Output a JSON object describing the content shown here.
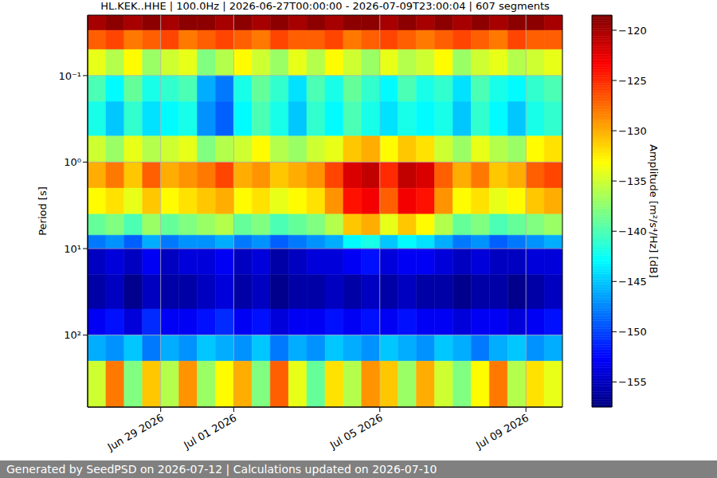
{
  "chart_data": {
    "type": "heatmap",
    "title": "HL.KEK..HHE | 100.0Hz | 2026-06-27T00:00:00 - 2026-07-09T23:00:04 | 607 segments",
    "y_label": "Period [s]",
    "log": "y",
    "grid": true,
    "xlim": [
      "2026-06-27T00:00:00Z",
      "2026-07-10T00:00:00Z"
    ],
    "xticks": [
      {
        "value": "2026-06-29T00:00:00Z",
        "label": "Jun 29 2026"
      },
      {
        "value": "2026-07-01T00:00:00Z",
        "label": "Jul 01 2026"
      },
      {
        "value": "2026-07-05T00:00:00Z",
        "label": "Jul 05 2026"
      },
      {
        "value": "2026-07-09T00:00:00Z",
        "label": "Jul 09 2026"
      }
    ],
    "ylim": [
      0.02,
      680
    ],
    "yticks": [
      {
        "value": 0.1,
        "label": "10⁻¹"
      },
      {
        "value": 1,
        "label": "10⁰"
      },
      {
        "value": 10,
        "label": "10¹"
      },
      {
        "value": 100,
        "label": "10²"
      }
    ],
    "x_edges": [
      "2026-06-27T00:00:00Z",
      "2026-06-27T12:00:00Z",
      "2026-06-28T00:00:00Z",
      "2026-06-28T12:00:00Z",
      "2026-06-29T00:00:00Z",
      "2026-06-29T12:00:00Z",
      "2026-06-30T00:00:00Z",
      "2026-06-30T12:00:00Z",
      "2026-07-01T00:00:00Z",
      "2026-07-01T12:00:00Z",
      "2026-07-02T00:00:00Z",
      "2026-07-02T12:00:00Z",
      "2026-07-03T00:00:00Z",
      "2026-07-03T12:00:00Z",
      "2026-07-04T00:00:00Z",
      "2026-07-04T12:00:00Z",
      "2026-07-05T00:00:00Z",
      "2026-07-05T12:00:00Z",
      "2026-07-06T00:00:00Z",
      "2026-07-06T12:00:00Z",
      "2026-07-07T00:00:00Z",
      "2026-07-07T12:00:00Z",
      "2026-07-08T00:00:00Z",
      "2026-07-08T12:00:00Z",
      "2026-07-09T00:00:00Z",
      "2026-07-09T12:00:00Z",
      "2026-07-10T00:00:00Z"
    ],
    "y_edges": [
      0.02,
      0.03,
      0.05,
      0.1,
      0.2,
      0.5,
      1,
      2,
      4,
      7,
      10,
      20,
      50,
      100,
      200,
      680
    ],
    "cells": [
      [
        -120,
        -119,
        -120,
        -119,
        -120,
        -119,
        -119,
        -120,
        -119,
        -120,
        -119,
        -120,
        -119,
        -120,
        -119,
        -119,
        -120,
        -119,
        -120,
        -119,
        -120,
        -119,
        -120,
        -119,
        -119,
        -120
      ],
      [
        -127,
        -126,
        -128,
        -127,
        -126,
        -128,
        -127,
        -126,
        -127,
        -128,
        -126,
        -127,
        -127,
        -126,
        -128,
        -127,
        -126,
        -127,
        -128,
        -127,
        -126,
        -127,
        -128,
        -126,
        -127,
        -127
      ],
      [
        -134,
        -136,
        -133,
        -137,
        -135,
        -134,
        -138,
        -136,
        -133,
        -135,
        -137,
        -134,
        -136,
        -133,
        -135,
        -137,
        -134,
        -136,
        -135,
        -133,
        -137,
        -135,
        -134,
        -136,
        -135,
        -134
      ],
      [
        -140,
        -143,
        -139,
        -142,
        -141,
        -140,
        -146,
        -148,
        -142,
        -139,
        -141,
        -144,
        -140,
        -142,
        -139,
        -141,
        -143,
        -140,
        -142,
        -141,
        -144,
        -140,
        -142,
        -143,
        -141,
        -140
      ],
      [
        -142,
        -145,
        -141,
        -144,
        -143,
        -142,
        -147,
        -149,
        -143,
        -140,
        -142,
        -145,
        -141,
        -143,
        -140,
        -142,
        -144,
        -142,
        -143,
        -142,
        -145,
        -141,
        -143,
        -145,
        -142,
        -141
      ],
      [
        -135,
        -137,
        -134,
        -136,
        -135,
        -134,
        -138,
        -136,
        -135,
        -133,
        -136,
        -137,
        -135,
        -134,
        -131,
        -130,
        -133,
        -131,
        -132,
        -135,
        -137,
        -134,
        -136,
        -137,
        -133,
        -132
      ],
      [
        -130,
        -128,
        -131,
        -127,
        -130,
        -129,
        -128,
        -126,
        -130,
        -129,
        -131,
        -130,
        -129,
        -126,
        -122,
        -121,
        -125,
        -121,
        -122,
        -127,
        -130,
        -128,
        -131,
        -130,
        -127,
        -126
      ],
      [
        -133,
        -132,
        -134,
        -131,
        -133,
        -132,
        -131,
        -130,
        -133,
        -132,
        -134,
        -133,
        -132,
        -129,
        -124,
        -123,
        -127,
        -123,
        -124,
        -129,
        -133,
        -132,
        -134,
        -133,
        -131,
        -130
      ],
      [
        -139,
        -138,
        -140,
        -137,
        -139,
        -138,
        -137,
        -136,
        -139,
        -138,
        -140,
        -139,
        -138,
        -136,
        -131,
        -130,
        -134,
        -131,
        -133,
        -136,
        -139,
        -138,
        -140,
        -139,
        -138,
        -137
      ],
      [
        -148,
        -147,
        -149,
        -146,
        -148,
        -147,
        -147,
        -146,
        -148,
        -147,
        -149,
        -148,
        -147,
        -146,
        -143,
        -142,
        -145,
        -143,
        -144,
        -146,
        -148,
        -147,
        -149,
        -148,
        -147,
        -146
      ],
      [
        -155,
        -154,
        -155,
        -153,
        -155,
        -154,
        -154,
        -153,
        -155,
        -154,
        -156,
        -155,
        -154,
        -154,
        -153,
        -152,
        -154,
        -153,
        -153,
        -154,
        -155,
        -154,
        -155,
        -155,
        -154,
        -154
      ],
      [
        -156,
        -155,
        -157,
        -155,
        -156,
        -156,
        -155,
        -154,
        -156,
        -155,
        -157,
        -156,
        -156,
        -155,
        -156,
        -155,
        -156,
        -155,
        -156,
        -156,
        -157,
        -156,
        -156,
        -157,
        -156,
        -155
      ],
      [
        -153,
        -152,
        -154,
        -151,
        -153,
        -153,
        -152,
        -151,
        -153,
        -152,
        -154,
        -153,
        -153,
        -152,
        -153,
        -152,
        -153,
        -152,
        -153,
        -153,
        -154,
        -153,
        -153,
        -154,
        -153,
        -152
      ],
      [
        -146,
        -147,
        -145,
        -148,
        -146,
        -147,
        -145,
        -146,
        -147,
        -145,
        -148,
        -146,
        -147,
        -145,
        -146,
        -147,
        -145,
        -146,
        -147,
        -145,
        -146,
        -148,
        -146,
        -145,
        -147,
        -146
      ],
      [
        -135,
        -128,
        -138,
        -131,
        -136,
        -129,
        -137,
        -133,
        -130,
        -138,
        -127,
        -134,
        -139,
        -132,
        -136,
        -129,
        -131,
        -137,
        -130,
        -135,
        -138,
        -133,
        -128,
        -136,
        -132,
        -134
      ]
    ],
    "colorbar": {
      "label": "Amplitude [m²/s⁴/Hz] [dB]",
      "range": [
        -157.5,
        -118.5
      ],
      "ticks": [
        {
          "value": -120,
          "label": "−120"
        },
        {
          "value": -125,
          "label": "−125"
        },
        {
          "value": -130,
          "label": "−130"
        },
        {
          "value": -135,
          "label": "−135"
        },
        {
          "value": -140,
          "label": "−140"
        },
        {
          "value": -145,
          "label": "−145"
        },
        {
          "value": -150,
          "label": "−150"
        },
        {
          "value": -155,
          "label": "−155"
        }
      ]
    },
    "footer": "Generated by SeedPSD on 2026-07-12 | Calculations updated on 2026-07-10"
  }
}
